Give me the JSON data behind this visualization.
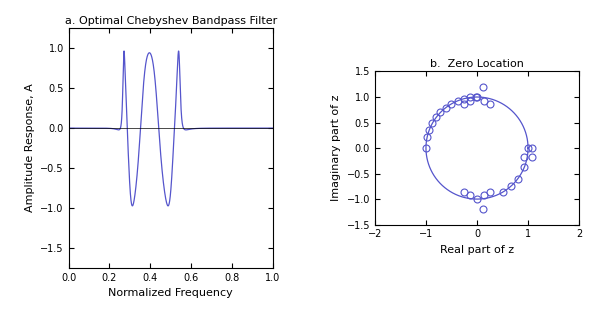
{
  "title_a": "a. Optimal Chebyshev Bandpass Filter",
  "title_b": "b.  Zero Location",
  "xlabel_a": "Normalized Frequency",
  "ylabel_a": "Amplitude Response, A",
  "xlabel_b": "Real part of z",
  "ylabel_b": "Imaginary part of z",
  "xlim_a": [
    0,
    1
  ],
  "ylim_a": [
    -1.75,
    1.25
  ],
  "xlim_b": [
    -2,
    2
  ],
  "ylim_b": [
    -1.5,
    1.5
  ],
  "line_color": "#5555cc",
  "circle_color": "#5555cc",
  "zeros_real": [
    -1.0,
    -0.978,
    -0.94,
    -0.885,
    -0.81,
    -0.72,
    -0.615,
    -0.5,
    -0.38,
    -0.255,
    -0.13,
    -0.01,
    0.0,
    0.12,
    -0.13,
    0.13,
    -0.25,
    0.25,
    0.0,
    0.12,
    -0.13,
    0.13,
    -0.25,
    0.25,
    0.5,
    0.66,
    0.8,
    0.93,
    1.0,
    1.08,
    0.93,
    1.08
  ],
  "zeros_imag": [
    0.0,
    0.21,
    0.36,
    0.5,
    0.61,
    0.7,
    0.79,
    0.87,
    0.925,
    0.967,
    0.991,
    1.0,
    1.0,
    1.19,
    0.92,
    0.92,
    0.87,
    0.87,
    -1.0,
    -1.19,
    -0.92,
    -0.92,
    -0.87,
    -0.87,
    -0.87,
    -0.75,
    -0.6,
    -0.37,
    0.0,
    0.0,
    -0.17,
    -0.17
  ],
  "yticks_a": [
    -1.5,
    -1.0,
    -0.5,
    0.0,
    0.5,
    1.0
  ],
  "xticks_a": [
    0,
    0.2,
    0.4,
    0.6,
    0.8,
    1.0
  ],
  "xticks_b": [
    -2,
    -1,
    0,
    1,
    2
  ],
  "yticks_b": [
    -1.5,
    -1.0,
    -0.5,
    0.0,
    0.5,
    1.0,
    1.5
  ]
}
